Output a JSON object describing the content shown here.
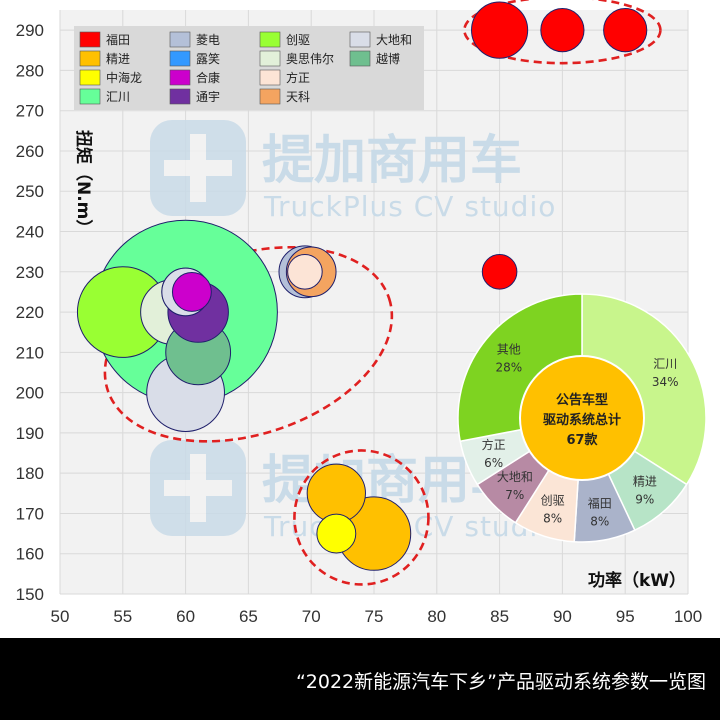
{
  "caption": "“2022新能源汽车下乡”产品驱动系统参数一览图",
  "watermark": {
    "title": "提加商用车",
    "subtitle": "TruckPlus CV studio"
  },
  "chart_data": [
    {
      "type": "bubble",
      "xlabel": "功率（kW）",
      "ylabel": "扭矩（N.m）",
      "xlim": [
        50,
        100
      ],
      "ylim": [
        150,
        295
      ],
      "xticks": [
        50,
        55,
        60,
        65,
        70,
        75,
        80,
        85,
        90,
        95,
        100
      ],
      "yticks": [
        150,
        160,
        170,
        180,
        190,
        200,
        210,
        220,
        230,
        240,
        250,
        260,
        270,
        280,
        290
      ],
      "grid": true,
      "legend_position": "top-left",
      "series": [
        {
          "name": "福田",
          "color": "#ff0000",
          "points": [
            {
              "x": 85,
              "y": 290,
              "size": 2.6
            },
            {
              "x": 90,
              "y": 290,
              "size": 2.0
            },
            {
              "x": 95,
              "y": 290,
              "size": 2.0
            },
            {
              "x": 85,
              "y": 230,
              "size": 1.6
            }
          ]
        },
        {
          "name": "精进",
          "color": "#ffc000",
          "points": [
            {
              "x": 72,
              "y": 175,
              "size": 2.7
            },
            {
              "x": 75,
              "y": 165,
              "size": 3.4
            }
          ]
        },
        {
          "name": "中海龙",
          "color": "#ffff00",
          "points": [
            {
              "x": 72,
              "y": 165,
              "size": 1.8
            }
          ]
        },
        {
          "name": "汇川",
          "color": "#66ff99",
          "points": [
            {
              "x": 60,
              "y": 220,
              "size": 8.5
            }
          ]
        },
        {
          "name": "菱电",
          "color": "#b4c0d8",
          "points": [
            {
              "x": 69.5,
              "y": 230,
              "size": 2.4
            }
          ]
        },
        {
          "name": "露笑",
          "color": "#3399ff",
          "points": [
            {
              "x": 60,
              "y": 225,
              "size": 2.2
            }
          ]
        },
        {
          "name": "合康",
          "color": "#cc00cc",
          "points": [
            {
              "x": 60.5,
              "y": 225,
              "size": 1.8
            }
          ]
        },
        {
          "name": "通宇",
          "color": "#7030a0",
          "points": [
            {
              "x": 61,
              "y": 220,
              "size": 2.8
            }
          ]
        },
        {
          "name": "创驱",
          "color": "#99ff33",
          "points": [
            {
              "x": 55,
              "y": 220,
              "size": 4.2
            }
          ]
        },
        {
          "name": "奥思伟尔",
          "color": "#e2f0d9",
          "points": [
            {
              "x": 59,
              "y": 220,
              "size": 3.0
            }
          ]
        },
        {
          "name": "方正",
          "color": "#fce4d6",
          "points": [
            {
              "x": 69.5,
              "y": 230,
              "size": 1.6
            }
          ]
        },
        {
          "name": "天科",
          "color": "#f4a460",
          "points": [
            {
              "x": 70,
              "y": 230,
              "size": 2.3
            }
          ]
        },
        {
          "name": "大地和",
          "color": "#d9dde8",
          "points": [
            {
              "x": 60,
              "y": 200,
              "size": 3.6
            },
            {
              "x": 60,
              "y": 225,
              "size": 2.2
            }
          ]
        },
        {
          "name": "越博",
          "color": "#6fbf8f",
          "points": [
            {
              "x": 61,
              "y": 210,
              "size": 3.0
            }
          ]
        }
      ]
    },
    {
      "type": "pie",
      "center_lines": [
        "公告车型",
        "驱动系统总计",
        "67款"
      ],
      "slices": [
        {
          "name": "汇川",
          "label": "34%",
          "value": 34,
          "color": "#c8f58c"
        },
        {
          "name": "精进",
          "label": "9%",
          "value": 9,
          "color": "#b7e4c7"
        },
        {
          "name": "福田",
          "label": "8%",
          "value": 8,
          "color": "#aab3ca"
        },
        {
          "name": "创驱",
          "label": "8%",
          "value": 8,
          "color": "#fbe5d6"
        },
        {
          "name": "大地和",
          "label": "7%",
          "value": 7,
          "color": "#b78aa4"
        },
        {
          "name": "方正",
          "label": "6%",
          "value": 6,
          "color": "#e2f0e8"
        },
        {
          "name": "其他",
          "label": "28%",
          "value": 28,
          "color": "#7ed321"
        }
      ],
      "center_color": "#ffc000"
    }
  ]
}
